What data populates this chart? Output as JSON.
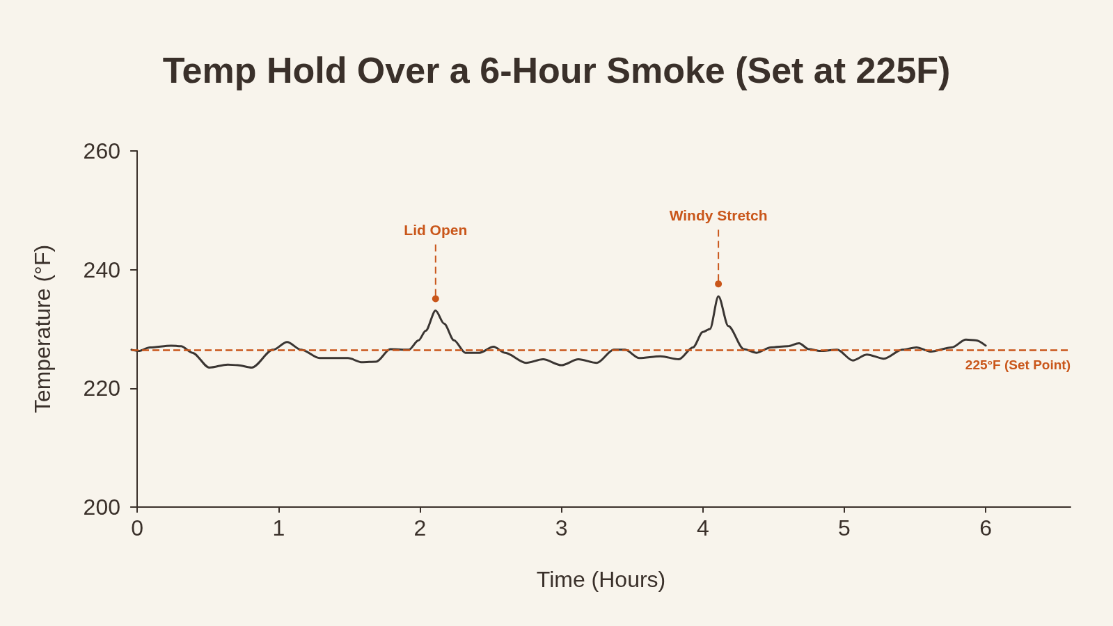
{
  "chart_data": {
    "type": "line",
    "title": "Temp Hold Over a 6-Hour Smoke (Set at 225F)",
    "xlabel": "Time (Hours)",
    "ylabel": "Temperature (°F)",
    "xlim": [
      -0.04,
      6.6
    ],
    "xticks": [
      0,
      1,
      2,
      3,
      4,
      5,
      6
    ],
    "ylim": [
      200,
      260
    ],
    "yticks": [
      200,
      220,
      240,
      260
    ],
    "grid": false,
    "marker": "none",
    "line_style": "solid",
    "series": [
      {
        "color": "#3a3532",
        "x": [
          -0.04,
          0.01,
          0.09,
          0.24,
          0.31,
          0.39,
          0.51,
          0.64,
          0.71,
          0.81,
          0.96,
          1.06,
          1.16,
          1.29,
          1.39,
          1.49,
          1.59,
          1.69,
          1.79,
          1.92,
          1.99,
          2.04,
          2.11,
          2.17,
          2.24,
          2.32,
          2.42,
          2.52,
          2.6,
          2.75,
          2.87,
          3.0,
          3.12,
          3.25,
          3.37,
          3.45,
          3.55,
          3.7,
          3.83,
          3.93,
          4.0,
          4.05,
          4.11,
          4.18,
          4.29,
          4.38,
          4.48,
          4.6,
          4.68,
          4.75,
          4.83,
          4.95,
          5.06,
          5.16,
          5.28,
          5.41,
          5.51,
          5.61,
          5.76,
          5.86,
          5.93,
          6.0
        ],
        "values": [
          226.5,
          226.3,
          226.9,
          227.2,
          227.1,
          226.0,
          223.5,
          224.0,
          223.9,
          223.5,
          226.5,
          227.8,
          226.5,
          225.1,
          225.1,
          225.1,
          224.4,
          224.5,
          226.6,
          226.5,
          228.1,
          229.7,
          233.1,
          230.9,
          228.1,
          226.0,
          226.0,
          227.0,
          226.0,
          224.3,
          224.9,
          223.9,
          224.9,
          224.3,
          226.5,
          226.5,
          225.1,
          225.4,
          224.9,
          226.9,
          229.5,
          230.0,
          235.5,
          230.5,
          226.6,
          226.0,
          226.9,
          227.1,
          227.6,
          226.6,
          226.3,
          226.5,
          224.7,
          225.7,
          225.0,
          226.5,
          226.9,
          226.2,
          226.9,
          228.2,
          228.1,
          227.2
        ]
      }
    ],
    "ref_lines": [
      {
        "axis": "y",
        "value": 226.5,
        "label": "225°F (Set Point)",
        "color": "#c9561a",
        "line_style": "dashed"
      }
    ],
    "annotations": [
      {
        "text": "Lid Open",
        "x": 2.11,
        "y": 235.1
      },
      {
        "text": "Windy Stretch",
        "x": 4.11,
        "y": 237.6
      }
    ]
  }
}
